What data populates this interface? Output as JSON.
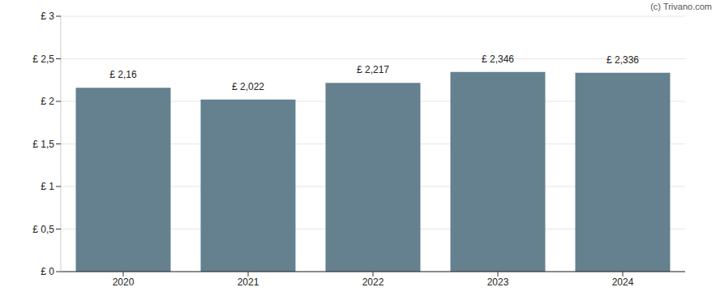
{
  "chart_data": {
    "type": "bar",
    "annotations": [
      "(c) Trivano.com"
    ],
    "categories": [
      "2020",
      "2021",
      "2022",
      "2023",
      "2024"
    ],
    "values": [
      2.16,
      2.022,
      2.217,
      2.346,
      2.336
    ],
    "value_labels": [
      "£ 2,16",
      "£ 2,022",
      "£ 2,217",
      "£ 2,346",
      "£ 2,336"
    ],
    "data_labels": true,
    "color": "#65808f",
    "ylim": [
      0,
      3
    ],
    "yticks": [
      {
        "value": 0,
        "label": "£ 0"
      },
      {
        "value": 0.5,
        "label": "£ 0,5"
      },
      {
        "value": 1,
        "label": "£ 1"
      },
      {
        "value": 1.5,
        "label": "£ 1,5"
      },
      {
        "value": 2,
        "label": "£ 2"
      },
      {
        "value": 2.5,
        "label": "£ 2,5"
      },
      {
        "value": 3,
        "label": "£ 3"
      }
    ],
    "grid": true
  }
}
